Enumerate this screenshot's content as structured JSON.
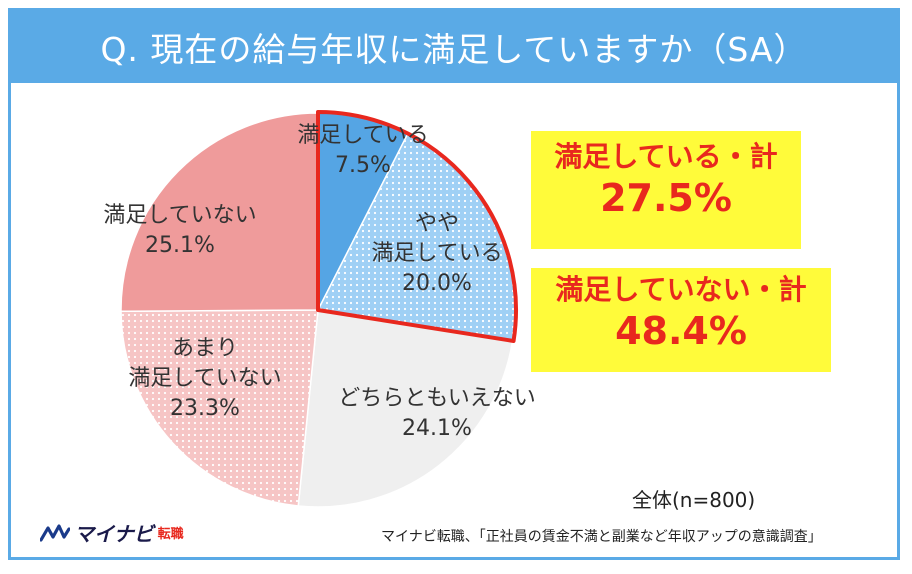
{
  "header": {
    "title": "Q. 現在の給与年収に満足していますか（SA）"
  },
  "callouts": {
    "satisfied_label": "満足している・計",
    "satisfied_value": "27.5%",
    "unsatisfied_label": "満足していない・計",
    "unsatisfied_value": "48.4%"
  },
  "chart_data": {
    "type": "pie",
    "title": "Q. 現在の給与年収に満足していますか（SA）",
    "slices": [
      {
        "label": "満足している",
        "value": 7.5,
        "value_label": "7.5%",
        "color": "#55a5e4",
        "pattern": "none"
      },
      {
        "label": "やや満足している",
        "value": 20.0,
        "value_label": "20.0%",
        "color": "#9fd0f5",
        "pattern": "dots"
      },
      {
        "label": "どちらともいえない",
        "value": 24.1,
        "value_label": "24.1%",
        "color": "#efefef",
        "pattern": "none"
      },
      {
        "label": "あまり満足していない",
        "value": 23.3,
        "value_label": "23.3%",
        "color": "#f6c5c5",
        "pattern": "dots"
      },
      {
        "label": "満足していない",
        "value": 25.1,
        "value_label": "25.1%",
        "color": "#ef9b9b",
        "pattern": "none"
      }
    ],
    "highlight_color": "#e8281e",
    "highlighted_slices": [
      "満足している",
      "やや満足している"
    ]
  },
  "footer": {
    "sample_size": "全体(n=800)",
    "source": "マイナビ転職、「正社員の賃金不満と副業など年収アップの意識調査」",
    "logo_text": "マイナビ",
    "logo_sub": "転職"
  }
}
